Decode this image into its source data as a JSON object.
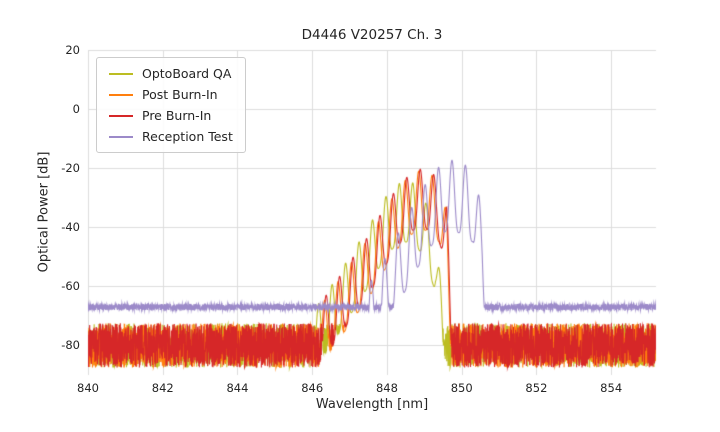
{
  "chart_data": {
    "type": "line",
    "title": "D4446 V20257 Ch. 3",
    "xlabel": "Wavelength [nm]",
    "ylabel": "Optical Power [dB]",
    "xlim": [
      840,
      855.2
    ],
    "ylim": [
      -90,
      20
    ],
    "x_ticks": [
      840,
      842,
      844,
      846,
      848,
      850,
      852,
      854
    ],
    "y_ticks": [
      20,
      0,
      -20,
      -40,
      -60,
      -80
    ],
    "grid": true,
    "grid_color": "#dcdcdc",
    "legend_position": "upper left",
    "series": [
      {
        "name": "OptoBoard QA",
        "color": "#bcbd22",
        "noise_floor_db": -80,
        "noise_amplitude_db": 7.5,
        "mode_spacing_nm": 0.36,
        "mode_phase_nm": 846.17,
        "mode_valley_db": 20,
        "envelope": [
          [
            846.05,
            -68
          ],
          [
            846.5,
            -60
          ],
          [
            847.0,
            -50
          ],
          [
            847.5,
            -40
          ],
          [
            848.0,
            -29
          ],
          [
            848.35,
            -25
          ],
          [
            848.7,
            -25
          ],
          [
            849.0,
            -30
          ],
          [
            849.3,
            -42
          ],
          [
            849.55,
            -72
          ]
        ],
        "seed": 11
      },
      {
        "name": "Post Burn-In",
        "color": "#ff7f0e",
        "noise_floor_db": -80,
        "noise_amplitude_db": 7.5,
        "mode_spacing_nm": 0.36,
        "mode_phase_nm": 846.33,
        "mode_valley_db": 20,
        "envelope": [
          [
            846.2,
            -67
          ],
          [
            846.6,
            -60
          ],
          [
            847.1,
            -51
          ],
          [
            847.6,
            -42
          ],
          [
            848.0,
            -33
          ],
          [
            848.4,
            -25
          ],
          [
            848.8,
            -21
          ],
          [
            849.1,
            -21
          ],
          [
            849.4,
            -25
          ],
          [
            849.6,
            -35
          ],
          [
            849.75,
            -74
          ]
        ],
        "seed": 22
      },
      {
        "name": "Pre Burn-In",
        "color": "#d62728",
        "noise_floor_db": -80,
        "noise_amplitude_db": 7.5,
        "mode_spacing_nm": 0.36,
        "mode_phase_nm": 846.37,
        "mode_valley_db": 20,
        "envelope": [
          [
            846.2,
            -66
          ],
          [
            846.6,
            -59
          ],
          [
            847.1,
            -50
          ],
          [
            847.5,
            -43
          ],
          [
            847.9,
            -34
          ],
          [
            848.3,
            -26
          ],
          [
            848.7,
            -21
          ],
          [
            849.0,
            -20
          ],
          [
            849.35,
            -23
          ],
          [
            849.6,
            -33
          ],
          [
            849.75,
            -72
          ]
        ],
        "seed": 33
      },
      {
        "name": "Reception Test",
        "color": "#9c8ac9",
        "noise_floor_db": -67,
        "noise_amplitude_db": 1.1,
        "mode_spacing_nm": 0.36,
        "mode_phase_nm": 846.5,
        "mode_valley_db": 24,
        "envelope": [
          [
            847.3,
            -63
          ],
          [
            847.8,
            -54
          ],
          [
            848.3,
            -42
          ],
          [
            848.8,
            -30
          ],
          [
            849.2,
            -22
          ],
          [
            849.6,
            -17
          ],
          [
            850.0,
            -18
          ],
          [
            850.3,
            -21
          ],
          [
            850.55,
            -34
          ],
          [
            850.72,
            -66
          ]
        ],
        "seed": 44
      }
    ]
  }
}
